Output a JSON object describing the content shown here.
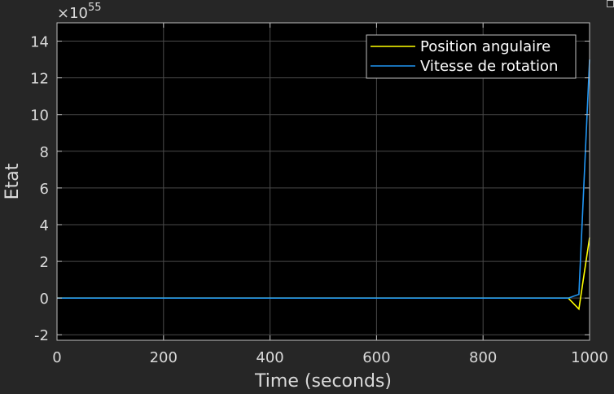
{
  "chart_data": {
    "type": "line",
    "xlabel": "Time (seconds)",
    "ylabel": "Etat",
    "exponent_label": "×10",
    "exponent_power": "55",
    "xlim": [
      0,
      1000
    ],
    "ylim": [
      -2.3,
      15
    ],
    "xticks": [
      0,
      200,
      400,
      600,
      800,
      1000
    ],
    "yticks": [
      -2,
      0,
      2,
      4,
      6,
      8,
      10,
      12,
      14
    ],
    "grid": true,
    "legend_position": "top-right",
    "background": "#000000",
    "series": [
      {
        "name": "Position angulaire",
        "color": "#ffff00",
        "x": [
          0,
          960,
          980,
          1000
        ],
        "y": [
          0,
          0,
          -0.6,
          3.3
        ]
      },
      {
        "name": "Vitesse de rotation",
        "color": "#2196f3",
        "x": [
          0,
          960,
          980,
          1000
        ],
        "y": [
          0,
          0,
          0.2,
          13
        ]
      }
    ]
  }
}
